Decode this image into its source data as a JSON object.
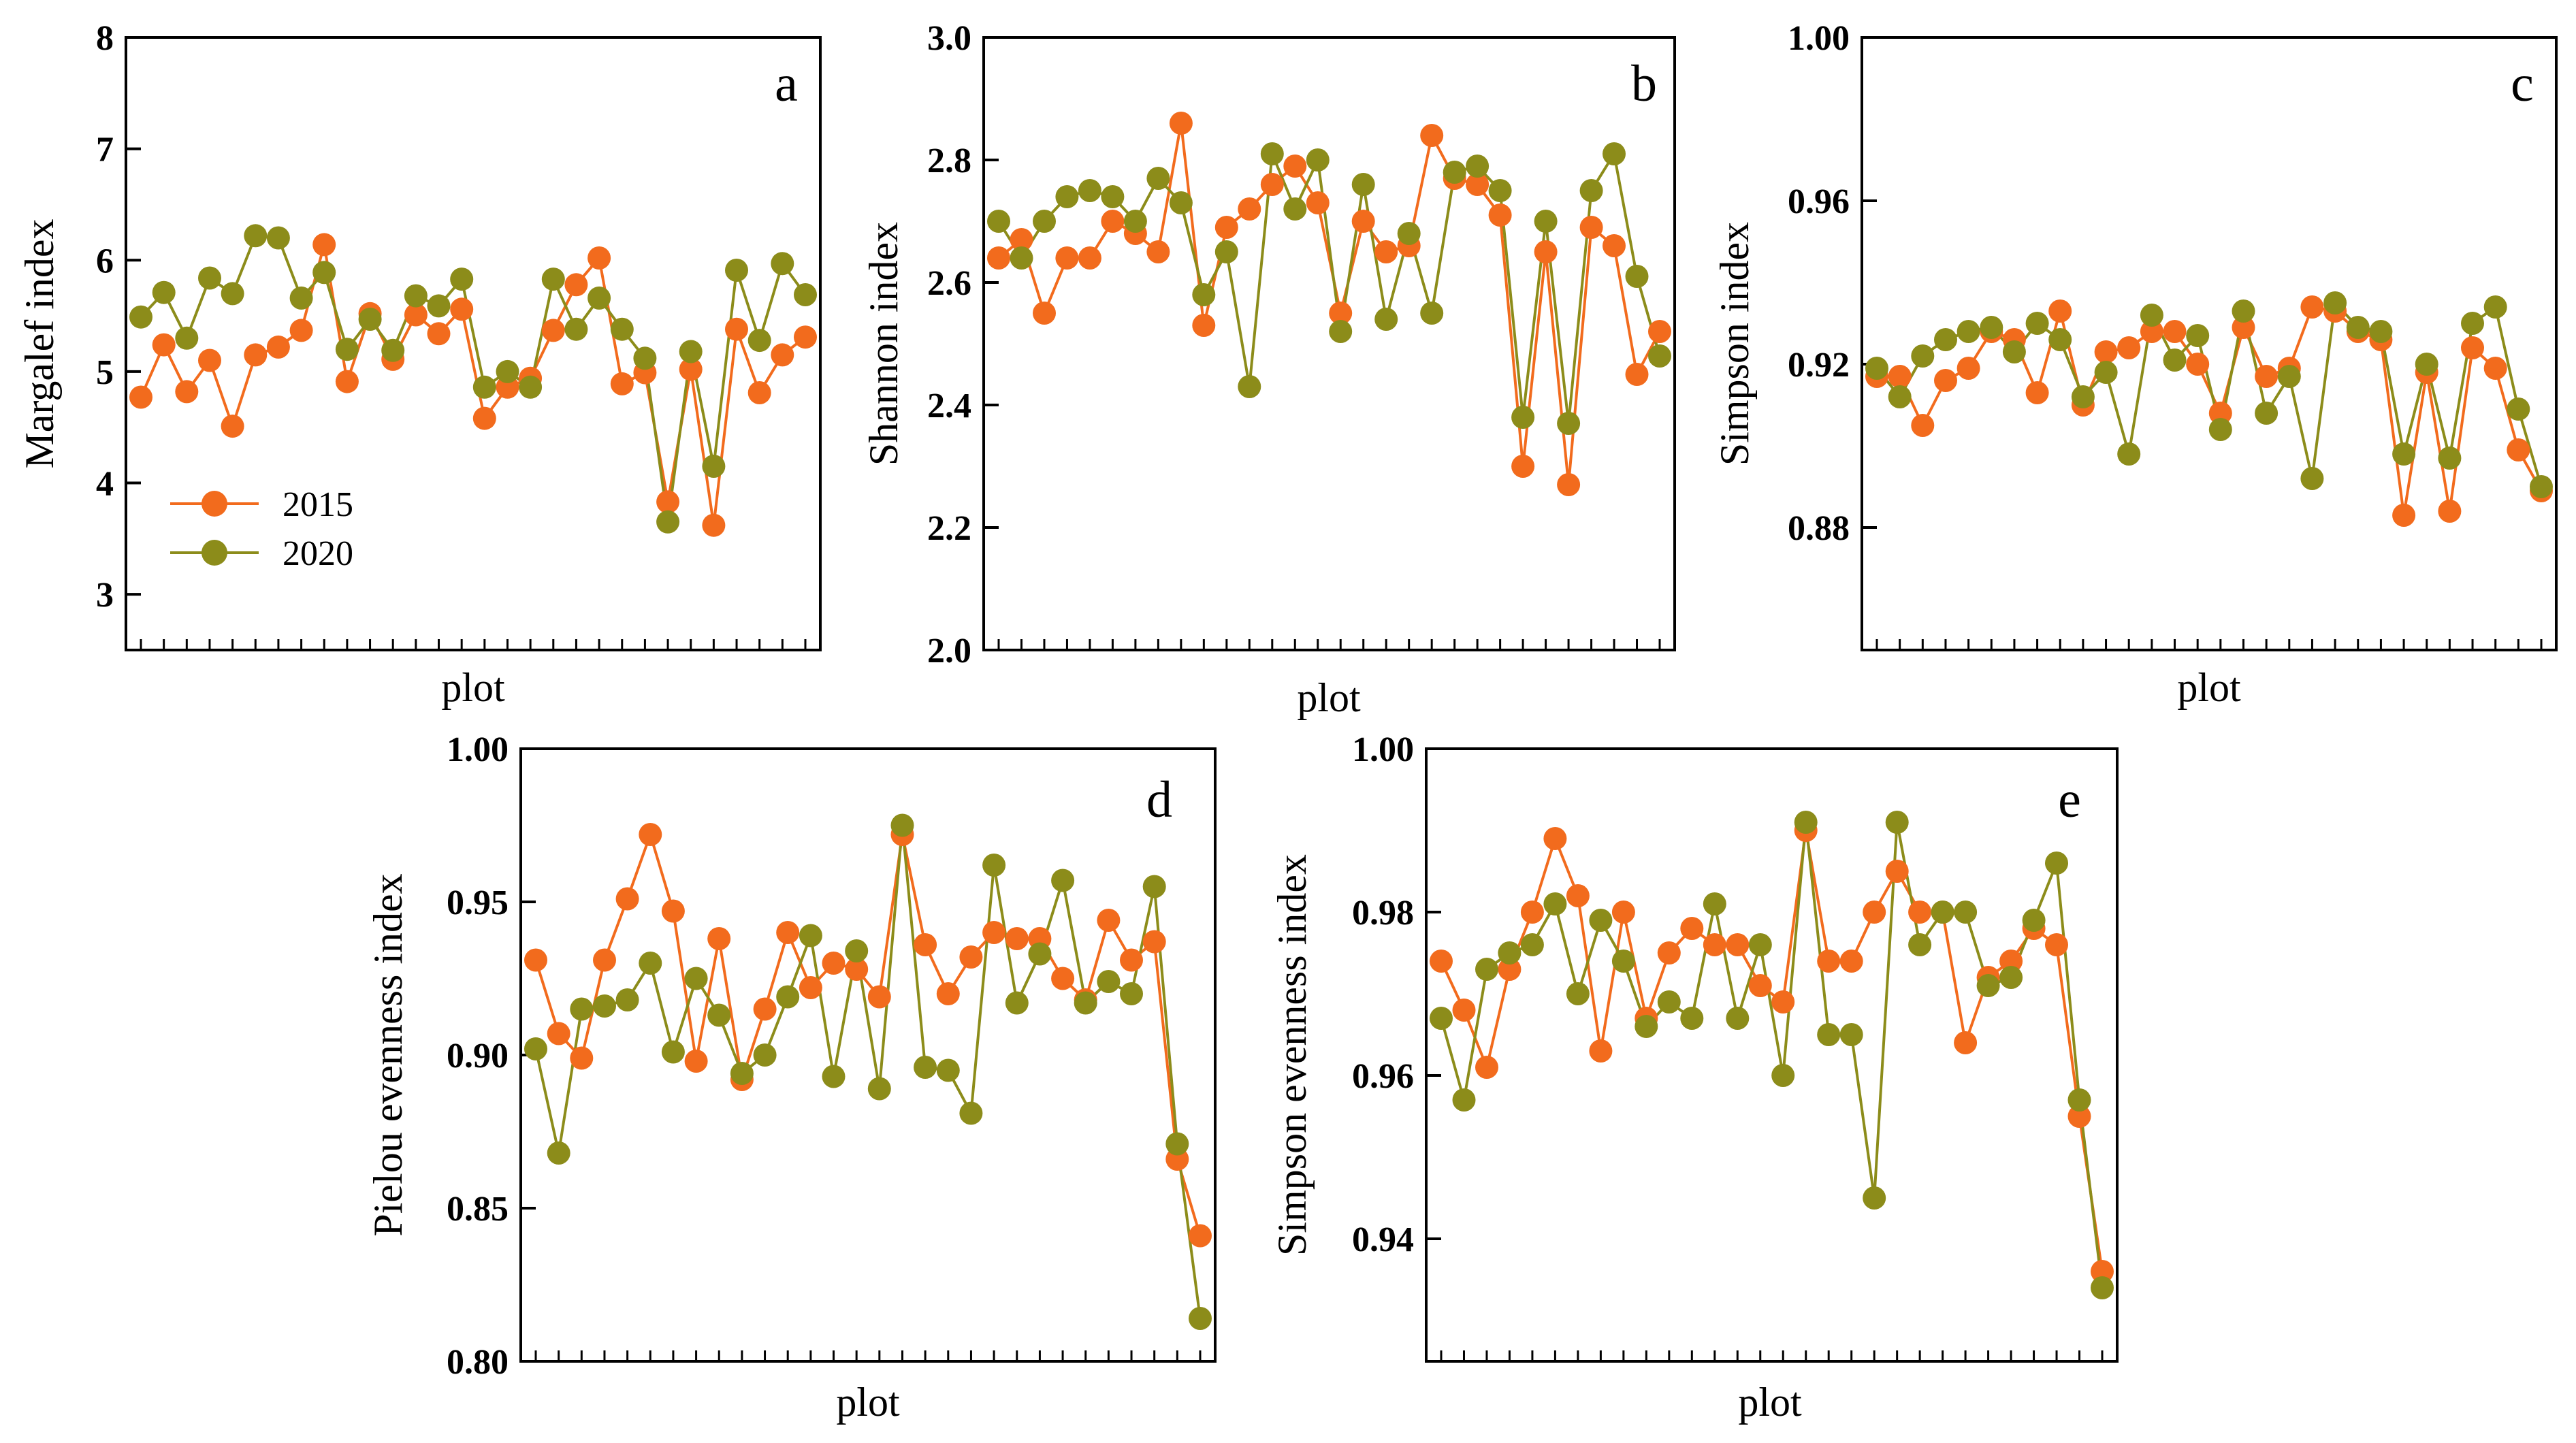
{
  "colors": {
    "series_2015": "#F26B1D",
    "series_2020": "#8C8C1A",
    "axis": "#000000"
  },
  "legend": {
    "entries": [
      "2015",
      "2020"
    ]
  },
  "chart_data": [
    {
      "id": "a",
      "type": "line",
      "panel_label": "a",
      "ylabel": "Margalef index",
      "xlabel": "plot",
      "ylim": [
        2.5,
        8
      ],
      "yticks": [
        "3",
        "4",
        "5",
        "6",
        "7",
        "8"
      ],
      "legend_location": "bottom-left",
      "series": [
        {
          "name": "2015",
          "values": [
            4.77,
            5.24,
            4.82,
            5.1,
            4.51,
            5.15,
            5.22,
            5.37,
            6.14,
            4.91,
            5.52,
            5.11,
            5.51,
            5.34,
            5.56,
            4.58,
            4.86,
            4.94,
            5.37,
            5.78,
            6.02,
            4.89,
            4.99,
            3.83,
            5.02,
            3.62,
            5.38,
            4.81,
            5.15,
            5.31
          ]
        },
        {
          "name": "2020",
          "values": [
            5.49,
            5.71,
            5.3,
            5.84,
            5.7,
            6.22,
            6.2,
            5.66,
            5.89,
            5.2,
            5.47,
            5.19,
            5.68,
            5.59,
            5.83,
            4.86,
            5.0,
            4.86,
            5.83,
            5.38,
            5.66,
            5.38,
            5.12,
            3.65,
            5.18,
            4.15,
            5.91,
            5.28,
            5.97,
            5.69
          ]
        }
      ]
    },
    {
      "id": "b",
      "type": "line",
      "panel_label": "b",
      "ylabel": "Shannon index",
      "xlabel": "plot",
      "ylim": [
        2.0,
        3.0
      ],
      "yticks": [
        "2.0",
        "2.2",
        "2.4",
        "2.6",
        "2.8",
        "3.0"
      ],
      "series": [
        {
          "name": "2015",
          "values": [
            2.64,
            2.67,
            2.55,
            2.64,
            2.64,
            2.7,
            2.68,
            2.65,
            2.86,
            2.53,
            2.69,
            2.72,
            2.76,
            2.79,
            2.73,
            2.55,
            2.7,
            2.65,
            2.66,
            2.84,
            2.77,
            2.76,
            2.71,
            2.3,
            2.65,
            2.27,
            2.69,
            2.66,
            2.45,
            2.52
          ]
        },
        {
          "name": "2020",
          "values": [
            2.7,
            2.64,
            2.7,
            2.74,
            2.75,
            2.74,
            2.7,
            2.77,
            2.73,
            2.58,
            2.65,
            2.43,
            2.81,
            2.72,
            2.8,
            2.52,
            2.76,
            2.54,
            2.68,
            2.55,
            2.78,
            2.79,
            2.75,
            2.38,
            2.7,
            2.37,
            2.75,
            2.81,
            2.61,
            2.48
          ]
        }
      ]
    },
    {
      "id": "c",
      "type": "line",
      "panel_label": "c",
      "ylabel": "Simpson index",
      "xlabel": "plot",
      "ylim": [
        0.85,
        1.0
      ],
      "yticks": [
        "0.88",
        "0.92",
        "0.96",
        "1.00"
      ],
      "series": [
        {
          "name": "2015",
          "values": [
            0.917,
            0.917,
            0.905,
            0.916,
            0.919,
            0.928,
            0.926,
            0.913,
            0.933,
            0.91,
            0.923,
            0.924,
            0.928,
            0.928,
            0.92,
            0.908,
            0.929,
            0.917,
            0.919,
            0.934,
            0.933,
            0.928,
            0.926,
            0.883,
            0.918,
            0.884,
            0.924,
            0.919,
            0.899,
            0.889
          ]
        },
        {
          "name": "2020",
          "values": [
            0.919,
            0.912,
            0.922,
            0.926,
            0.928,
            0.929,
            0.923,
            0.93,
            0.926,
            0.912,
            0.918,
            0.898,
            0.932,
            0.921,
            0.927,
            0.904,
            0.933,
            0.908,
            0.917,
            0.892,
            0.935,
            0.929,
            0.928,
            0.898,
            0.92,
            0.897,
            0.93,
            0.934,
            0.909,
            0.89
          ]
        }
      ]
    },
    {
      "id": "d",
      "type": "line",
      "panel_label": "d",
      "ylabel": "Pielou evenness index",
      "xlabel": "plot",
      "ylim": [
        0.8,
        1.0
      ],
      "yticks": [
        "0.80",
        "0.85",
        "0.90",
        "0.95",
        "1.00"
      ],
      "series": [
        {
          "name": "2015",
          "values": [
            0.931,
            0.907,
            0.899,
            0.931,
            0.951,
            0.972,
            0.947,
            0.898,
            0.938,
            0.892,
            0.915,
            0.94,
            0.922,
            0.93,
            0.928,
            0.919,
            0.972,
            0.936,
            0.92,
            0.932,
            0.94,
            0.938,
            0.938,
            0.925,
            0.918,
            0.944,
            0.931,
            0.937,
            0.866,
            0.841
          ]
        },
        {
          "name": "2020",
          "values": [
            0.902,
            0.868,
            0.915,
            0.916,
            0.918,
            0.93,
            0.901,
            0.925,
            0.913,
            0.894,
            0.9,
            0.919,
            0.939,
            0.893,
            0.934,
            0.889,
            0.975,
            0.896,
            0.895,
            0.881,
            0.962,
            0.917,
            0.933,
            0.957,
            0.917,
            0.924,
            0.92,
            0.955,
            0.871,
            0.814
          ]
        }
      ]
    },
    {
      "id": "e",
      "type": "line",
      "panel_label": "e",
      "ylabel": "Simpson evenness index",
      "xlabel": "plot",
      "ylim": [
        0.925,
        1.0
      ],
      "yticks": [
        "0.94",
        "0.96",
        "0.98",
        "1.00"
      ],
      "series": [
        {
          "name": "2015",
          "values": [
            0.974,
            0.968,
            0.961,
            0.973,
            0.98,
            0.989,
            0.982,
            0.963,
            0.98,
            0.967,
            0.975,
            0.978,
            0.976,
            0.976,
            0.971,
            0.969,
            0.99,
            0.974,
            0.974,
            0.98,
            0.985,
            0.98,
            0.98,
            0.964,
            0.972,
            0.974,
            0.978,
            0.976,
            0.955,
            0.936
          ]
        },
        {
          "name": "2020",
          "values": [
            0.967,
            0.957,
            0.973,
            0.975,
            0.976,
            0.981,
            0.97,
            0.979,
            0.974,
            0.966,
            0.969,
            0.967,
            0.981,
            0.967,
            0.976,
            0.96,
            0.991,
            0.965,
            0.965,
            0.945,
            0.991,
            0.976,
            0.98,
            0.98,
            0.971,
            0.972,
            0.979,
            0.986,
            0.957,
            0.934
          ]
        }
      ]
    }
  ]
}
